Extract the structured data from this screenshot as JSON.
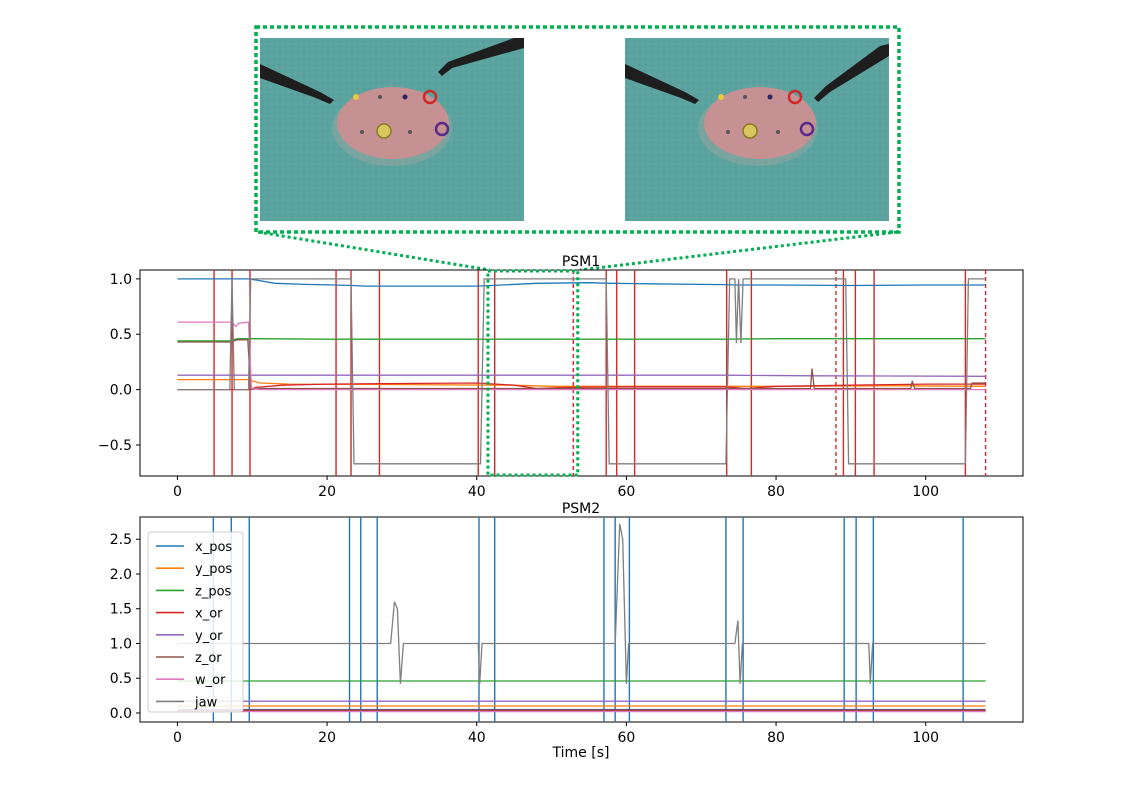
{
  "chart_data": [
    {
      "type": "line",
      "title": "PSM1",
      "xlabel": "",
      "ylabel": "",
      "xlim": [
        -5,
        113
      ],
      "ylim": [
        -0.78,
        1.08
      ],
      "x_ticks": [
        0,
        20,
        40,
        60,
        80,
        100
      ],
      "x_tick_labels": [
        "0",
        "20",
        "40",
        "60",
        "80",
        "100"
      ],
      "y_ticks": [
        1.0,
        0.5,
        0.0,
        -0.5
      ],
      "y_tick_labels": [
        "1.0",
        "0.5",
        "0.0",
        "−0.5"
      ],
      "event_line_color": "#d62728",
      "event_lines_solid": [
        4.9,
        7.3,
        9.7,
        21.2,
        23.2,
        27.0,
        40.2,
        42.4,
        57.3,
        58.7,
        61.1,
        73.4,
        76.7,
        89.0,
        90.6,
        93.1,
        105.3
      ],
      "event_lines_dashed": [
        52.9,
        88.0,
        108.0
      ],
      "zoom_region": [
        41.5,
        53.5
      ],
      "zoom_color": "#00b050",
      "series": [
        {
          "key": "x_pos",
          "color": "#1f77b4",
          "points": [
            [
              0,
              1.0
            ],
            [
              9.5,
              1.0
            ],
            [
              10.5,
              0.99
            ],
            [
              13,
              0.96
            ],
            [
              17,
              0.95
            ],
            [
              21,
              0.945
            ],
            [
              23.5,
              0.94
            ],
            [
              25,
              0.935
            ],
            [
              40,
              0.935
            ],
            [
              42,
              0.94
            ],
            [
              48,
              0.96
            ],
            [
              55,
              0.965
            ],
            [
              58,
              0.96
            ],
            [
              63,
              0.955
            ],
            [
              70,
              0.95
            ],
            [
              73,
              0.948
            ],
            [
              75,
              0.945
            ],
            [
              80,
              0.945
            ],
            [
              90,
              0.94
            ],
            [
              100,
              0.945
            ],
            [
              108,
              0.945
            ]
          ]
        },
        {
          "key": "y_pos",
          "color": "#ff7f0e",
          "points": [
            [
              0,
              0.09
            ],
            [
              9.5,
              0.09
            ],
            [
              11,
              0.06
            ],
            [
              15,
              0.05
            ],
            [
              30,
              0.045
            ],
            [
              45,
              0.04
            ],
            [
              50,
              0.03
            ],
            [
              60,
              0.03
            ],
            [
              80,
              0.03
            ],
            [
              95,
              0.035
            ],
            [
              108,
              0.03
            ]
          ]
        },
        {
          "key": "z_pos",
          "color": "#2ca02c",
          "points": [
            [
              0,
              0.44
            ],
            [
              7,
              0.44
            ],
            [
              8,
              0.46
            ],
            [
              9.5,
              0.46
            ],
            [
              10.5,
              0.46
            ],
            [
              20,
              0.455
            ],
            [
              40,
              0.455
            ],
            [
              50,
              0.455
            ],
            [
              60,
              0.455
            ],
            [
              73,
              0.455
            ],
            [
              80,
              0.46
            ],
            [
              100,
              0.46
            ],
            [
              108,
              0.46
            ]
          ]
        },
        {
          "key": "x_or",
          "color": "#d62728",
          "points": [
            [
              0,
              0.0
            ],
            [
              9.6,
              0.0
            ],
            [
              10.5,
              0.02
            ],
            [
              14,
              0.04
            ],
            [
              20,
              0.05
            ],
            [
              30,
              0.055
            ],
            [
              40,
              0.06
            ],
            [
              45,
              0.04
            ],
            [
              48,
              0.01
            ],
            [
              52,
              0.02
            ],
            [
              60,
              0.025
            ],
            [
              73,
              0.025
            ],
            [
              76,
              0.01
            ],
            [
              80,
              0.03
            ],
            [
              90,
              0.04
            ],
            [
              100,
              0.05
            ],
            [
              108,
              0.05
            ]
          ]
        },
        {
          "key": "y_or",
          "color": "#9467bd",
          "points": [
            [
              0,
              0.13
            ],
            [
              40,
              0.13
            ],
            [
              55,
              0.13
            ],
            [
              73,
              0.13
            ],
            [
              85,
              0.125
            ],
            [
              108,
              0.12
            ]
          ]
        },
        {
          "key": "z_or",
          "color": "#8c564b",
          "points": [
            [
              0,
              0.43
            ],
            [
              7.2,
              0.43
            ],
            [
              8,
              0.45
            ],
            [
              9.4,
              0.45
            ],
            [
              9.8,
              0.0
            ],
            [
              11,
              0.01
            ],
            [
              20,
              0.01
            ],
            [
              40,
              0.01
            ],
            [
              60,
              0.01
            ],
            [
              84.6,
              0.01
            ],
            [
              84.8,
              0.19
            ],
            [
              85.1,
              0.01
            ],
            [
              98,
              0.01
            ],
            [
              98.2,
              0.08
            ],
            [
              98.5,
              0.01
            ],
            [
              106,
              0.01
            ],
            [
              106.2,
              0.06
            ],
            [
              108,
              0.06
            ]
          ]
        },
        {
          "key": "w_or",
          "color": "#e377c2",
          "points": [
            [
              0,
              0.61
            ],
            [
              7.3,
              0.61
            ],
            [
              7.8,
              0.57
            ],
            [
              8.2,
              0.6
            ],
            [
              9.5,
              0.61
            ],
            [
              9.9,
              0.01
            ],
            [
              11,
              0.0
            ],
            [
              40,
              0.0
            ],
            [
              60,
              0.0
            ],
            [
              90,
              0.0
            ],
            [
              108,
              0.0
            ]
          ]
        },
        {
          "key": "jaw",
          "color": "#7f7f7f",
          "points": [
            [
              0,
              0.0
            ],
            [
              7.0,
              0.0
            ],
            [
              7.3,
              1.0
            ],
            [
              7.6,
              0.0
            ],
            [
              9.5,
              0.0
            ],
            [
              9.8,
              1.0
            ],
            [
              23.2,
              1.0
            ],
            [
              23.6,
              -0.67
            ],
            [
              40.5,
              -0.67
            ],
            [
              41.0,
              1.0
            ],
            [
              57.3,
              1.0
            ],
            [
              57.7,
              -0.67
            ],
            [
              73.3,
              -0.67
            ],
            [
              73.8,
              1.0
            ],
            [
              74.5,
              1.0
            ],
            [
              74.7,
              0.42
            ],
            [
              75.0,
              1.0
            ],
            [
              75.3,
              0.42
            ],
            [
              75.6,
              1.0
            ],
            [
              89.3,
              1.0
            ],
            [
              89.7,
              -0.67
            ],
            [
              105.3,
              -0.67
            ],
            [
              105.7,
              1.0
            ],
            [
              108,
              1.0
            ]
          ]
        }
      ]
    },
    {
      "type": "line",
      "title": "PSM2",
      "xlabel": "Time [s]",
      "ylabel": "",
      "xlim": [
        -5,
        113
      ],
      "ylim": [
        -0.13,
        2.82
      ],
      "x_ticks": [
        0,
        20,
        40,
        60,
        80,
        100
      ],
      "x_tick_labels": [
        "0",
        "20",
        "40",
        "60",
        "80",
        "100"
      ],
      "y_ticks": [
        0.0,
        0.5,
        1.0,
        1.5,
        2.0,
        2.5
      ],
      "y_tick_labels": [
        "0.0",
        "0.5",
        "1.0",
        "1.5",
        "2.0",
        "2.5"
      ],
      "event_line_color": "#1f77b4",
      "event_lines_solid": [
        4.8,
        7.2,
        9.6,
        23.0,
        24.5,
        26.7,
        40.3,
        42.4,
        57.0,
        58.5,
        60.4,
        73.3,
        75.6,
        89.1,
        90.7,
        93.0,
        105.0
      ],
      "event_lines_dashed": [],
      "legend_position": "upper-left",
      "legend": [
        "x_pos",
        "y_pos",
        "z_pos",
        "x_or",
        "y_or",
        "z_or",
        "w_or",
        "jaw"
      ],
      "series": [
        {
          "key": "x_pos",
          "color": "#1f77b4",
          "points": [
            [
              0,
              0.05
            ],
            [
              108,
              0.05
            ]
          ]
        },
        {
          "key": "y_pos",
          "color": "#ff7f0e",
          "points": [
            [
              0,
              0.1
            ],
            [
              108,
              0.1
            ]
          ]
        },
        {
          "key": "z_pos",
          "color": "#2ca02c",
          "points": [
            [
              0,
              0.46
            ],
            [
              108,
              0.46
            ]
          ]
        },
        {
          "key": "x_or",
          "color": "#d62728",
          "points": [
            [
              0,
              0.04
            ],
            [
              108,
              0.04
            ]
          ]
        },
        {
          "key": "y_or",
          "color": "#9467bd",
          "points": [
            [
              0,
              0.17
            ],
            [
              108,
              0.17
            ]
          ]
        },
        {
          "key": "z_or",
          "color": "#8c564b",
          "points": [
            [
              0,
              0.03
            ],
            [
              108,
              0.03
            ]
          ]
        },
        {
          "key": "w_or",
          "color": "#e377c2",
          "points": [
            [
              0,
              0.02
            ],
            [
              108,
              0.02
            ]
          ]
        },
        {
          "key": "jaw",
          "color": "#7f7f7f",
          "points": [
            [
              0,
              1.0
            ],
            [
              28.5,
              1.0
            ],
            [
              29.0,
              1.6
            ],
            [
              29.4,
              1.5
            ],
            [
              29.8,
              0.42
            ],
            [
              30.2,
              1.0
            ],
            [
              40.2,
              1.0
            ],
            [
              40.4,
              0.42
            ],
            [
              40.7,
              1.0
            ],
            [
              58.5,
              1.0
            ],
            [
              59.1,
              2.72
            ],
            [
              59.5,
              2.5
            ],
            [
              60.0,
              0.42
            ],
            [
              60.3,
              1.0
            ],
            [
              74.5,
              1.0
            ],
            [
              74.9,
              1.33
            ],
            [
              75.2,
              0.42
            ],
            [
              75.5,
              1.0
            ],
            [
              92.4,
              1.0
            ],
            [
              92.6,
              0.42
            ],
            [
              92.9,
              1.0
            ],
            [
              108,
              1.0
            ]
          ]
        }
      ]
    }
  ],
  "legend_labels": {
    "x_pos": "x_pos",
    "y_pos": "y_pos",
    "z_pos": "z_pos",
    "x_or": "x_or",
    "y_or": "y_or",
    "z_or": "z_or",
    "w_or": "w_or",
    "jaw": "jaw"
  },
  "frames": [
    {
      "name": "left",
      "colors": {
        "table": "#5ba5a0",
        "disk": "#c58f91"
      }
    },
    {
      "name": "right",
      "colors": {
        "table": "#5ba5a0",
        "disk": "#c58f91"
      }
    }
  ]
}
